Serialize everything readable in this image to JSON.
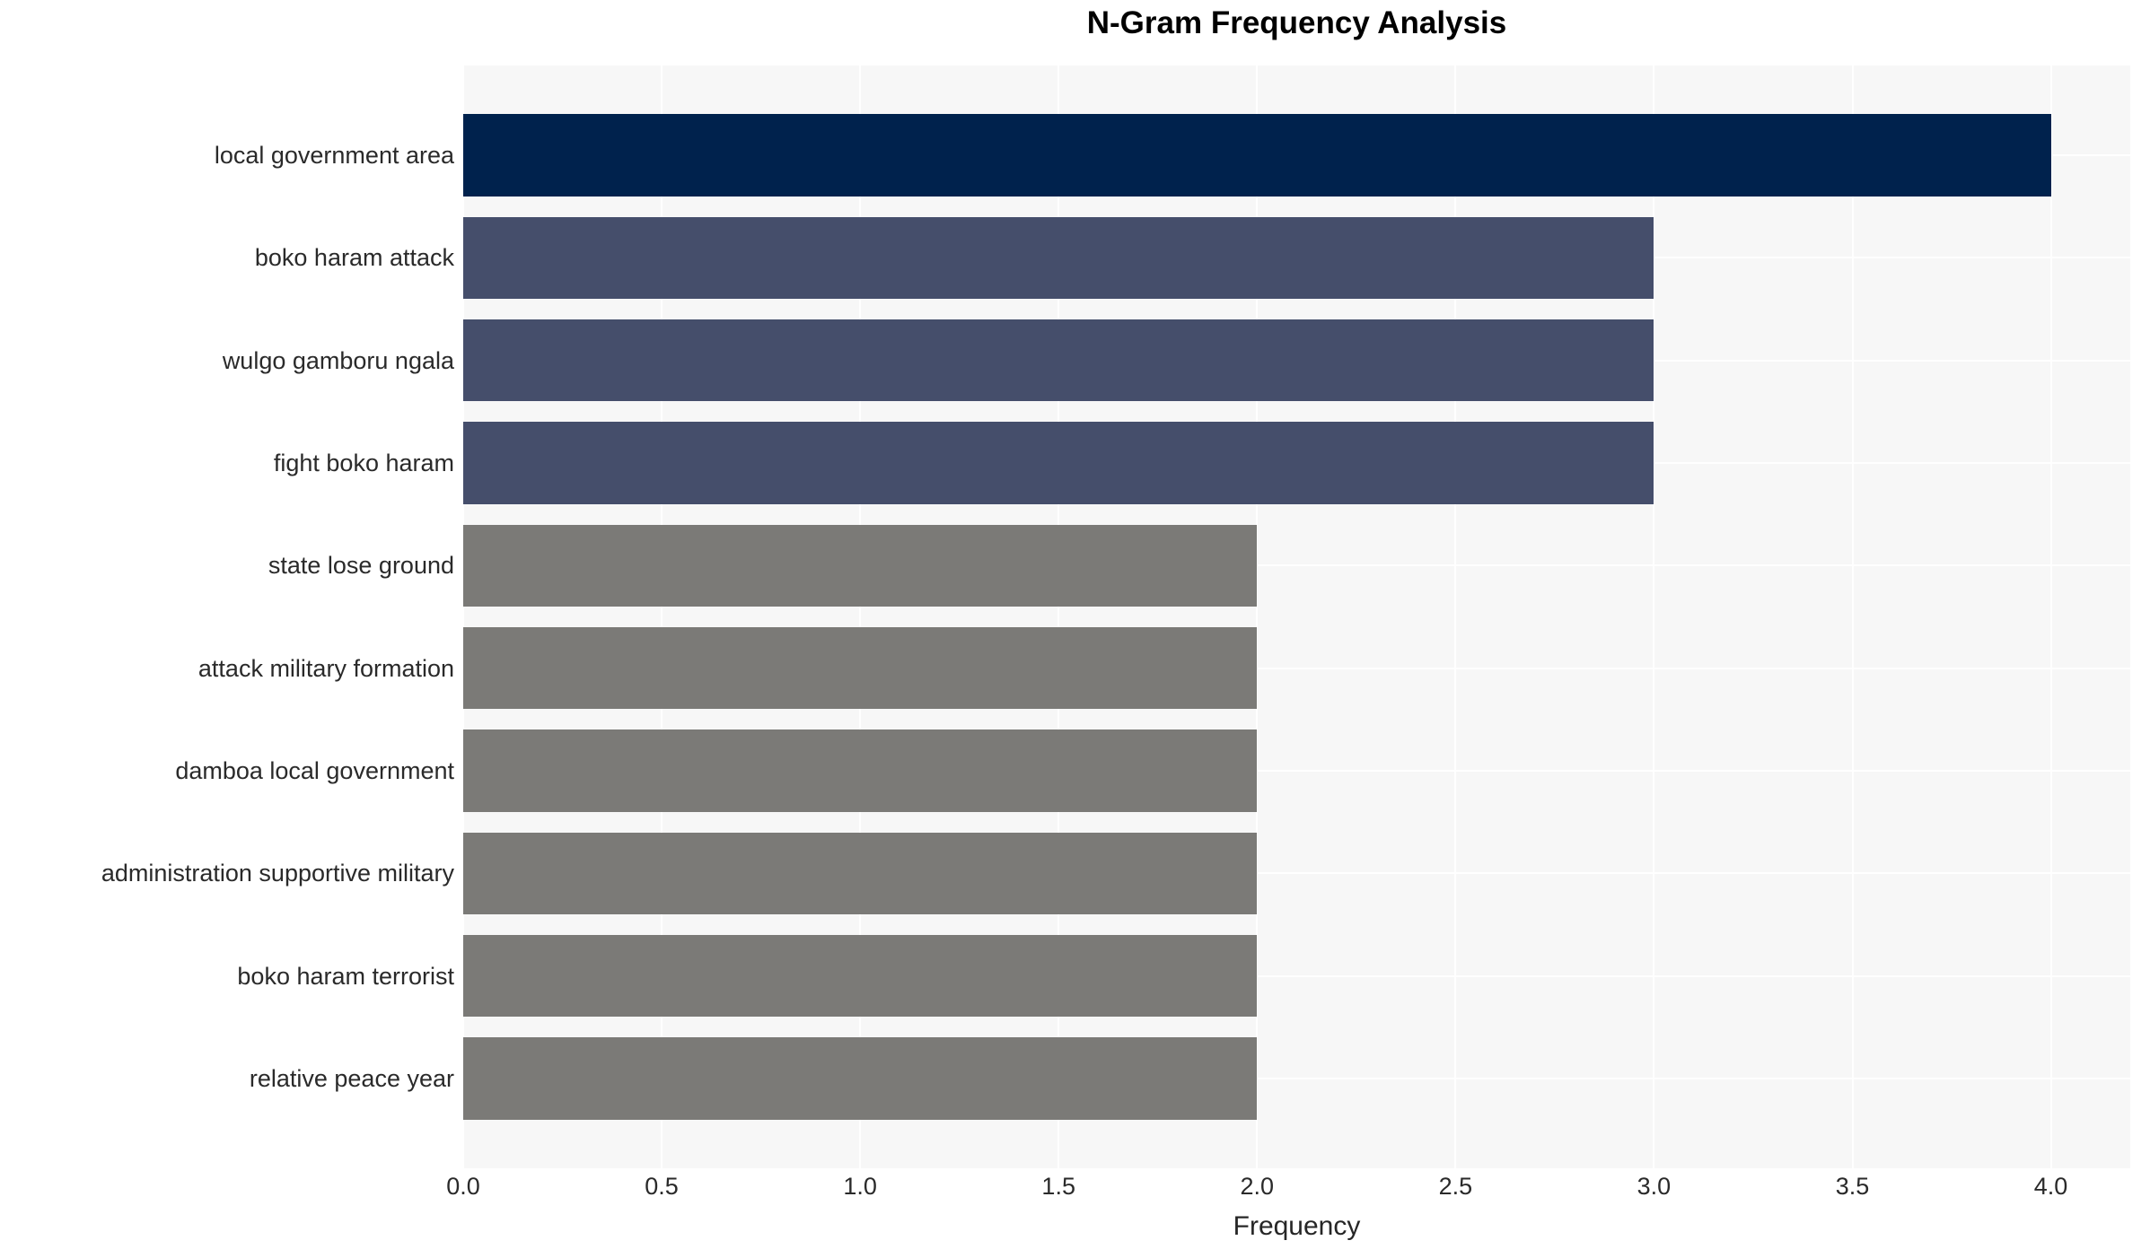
{
  "chart_data": {
    "type": "bar",
    "orientation": "horizontal",
    "title": "N-Gram Frequency Analysis",
    "xlabel": "Frequency",
    "ylabel": "",
    "categories": [
      "local government area",
      "boko haram attack",
      "wulgo gamboru ngala",
      "fight boko haram",
      "state lose ground",
      "attack military formation",
      "damboa local government",
      "administration supportive military",
      "boko haram terrorist",
      "relative peace year"
    ],
    "values": [
      4,
      3,
      3,
      3,
      2,
      2,
      2,
      2,
      2,
      2
    ],
    "bar_colors": [
      "#00224d",
      "#454e6b",
      "#454e6b",
      "#454e6b",
      "#7b7a77",
      "#7b7a77",
      "#7b7a77",
      "#7b7a77",
      "#7b7a77",
      "#7b7a77"
    ],
    "xlim": [
      0,
      4.2
    ],
    "xticks": [
      0.0,
      0.5,
      1.0,
      1.5,
      2.0,
      2.5,
      3.0,
      3.5,
      4.0
    ],
    "xtick_labels": [
      "0.0",
      "0.5",
      "1.0",
      "1.5",
      "2.0",
      "2.5",
      "3.0",
      "3.5",
      "4.0"
    ],
    "legend": "none",
    "grid": true,
    "grid_description": "white gridlines on light gray panel: vertical at every 0.5 tick, horizontal at each category center",
    "bar_height_fraction": 0.8,
    "colors": {
      "plot_background": "#f7f7f7",
      "gridline": "#ffffff",
      "value4_bar": "#00224d",
      "value3_bar": "#454e6b",
      "value2_bar": "#7b7a77",
      "tick_text": "#2a2a2a",
      "title_text": "#000000"
    }
  }
}
